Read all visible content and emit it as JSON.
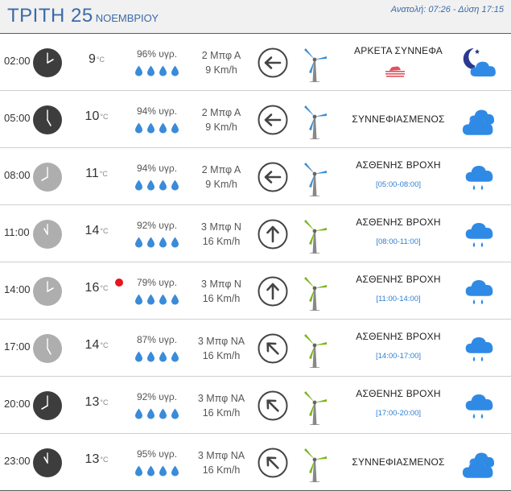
{
  "header": {
    "day": "ΤΡΙΤΗ 25",
    "month": "ΝΟΕΜΒΡΙΟΥ",
    "sun_times": "Ανατολή: 07:26 - Δύση 17:15"
  },
  "temp_unit": "°C",
  "rows": [
    {
      "time": "02:00",
      "clock": "dark",
      "hour": 2,
      "minute": 0,
      "temp": "9",
      "humidity": "96% υγρ.",
      "wind_bft": "2 Μπφ Α",
      "wind_speed": "9 Km/h",
      "wind_dir": "east",
      "wind_bearing": 270,
      "turbine": "blue",
      "condition": "ΑΡΚΕΤΑ ΣΥΝΝΕΦΑ",
      "range": "",
      "icon": "night-cloud-icon",
      "haze": true,
      "hot": false
    },
    {
      "time": "05:00",
      "clock": "dark",
      "hour": 5,
      "minute": 0,
      "temp": "10",
      "humidity": "94% υγρ.",
      "wind_bft": "2 Μπφ Α",
      "wind_speed": "9 Km/h",
      "wind_dir": "east",
      "wind_bearing": 270,
      "turbine": "blue",
      "condition": "ΣΥΝΝΕΦΙΑΣΜΕΝΟΣ",
      "range": "",
      "icon": "overcast-icon",
      "haze": false,
      "hot": false
    },
    {
      "time": "08:00",
      "clock": "light",
      "hour": 8,
      "minute": 0,
      "temp": "11",
      "humidity": "94% υγρ.",
      "wind_bft": "2 Μπφ Α",
      "wind_speed": "9 Km/h",
      "wind_dir": "east",
      "wind_bearing": 270,
      "turbine": "blue",
      "condition": "ΑΣΘΕΝΗΣ ΒΡΟΧΗ",
      "range": "[05:00-08:00]",
      "icon": "rain-cloud-icon",
      "haze": false,
      "hot": false
    },
    {
      "time": "11:00",
      "clock": "light",
      "hour": 11,
      "minute": 0,
      "temp": "14",
      "humidity": "92% υγρ.",
      "wind_bft": "3 Μπφ Ν",
      "wind_speed": "16 Km/h",
      "wind_dir": "south",
      "wind_bearing": 0,
      "turbine": "green",
      "condition": "ΑΣΘΕΝΗΣ ΒΡΟΧΗ",
      "range": "[08:00-11:00]",
      "icon": "rain-cloud-icon",
      "haze": false,
      "hot": false
    },
    {
      "time": "14:00",
      "clock": "light",
      "hour": 14,
      "minute": 0,
      "temp": "16",
      "humidity": "79% υγρ.",
      "wind_bft": "3 Μπφ Ν",
      "wind_speed": "16 Km/h",
      "wind_dir": "south",
      "wind_bearing": 0,
      "turbine": "green",
      "condition": "ΑΣΘΕΝΗΣ ΒΡΟΧΗ",
      "range": "[11:00-14:00]",
      "icon": "rain-cloud-icon",
      "haze": false,
      "hot": true
    },
    {
      "time": "17:00",
      "clock": "light",
      "hour": 17,
      "minute": 0,
      "temp": "14",
      "humidity": "87% υγρ.",
      "wind_bft": "3 Μπφ ΝΑ",
      "wind_speed": "16 Km/h",
      "wind_dir": "southeast",
      "wind_bearing": 315,
      "turbine": "green",
      "condition": "ΑΣΘΕΝΗΣ ΒΡΟΧΗ",
      "range": "[14:00-17:00]",
      "icon": "rain-cloud-icon",
      "haze": false,
      "hot": false
    },
    {
      "time": "20:00",
      "clock": "dark",
      "hour": 20,
      "minute": 0,
      "temp": "13",
      "humidity": "92% υγρ.",
      "wind_bft": "3 Μπφ ΝΑ",
      "wind_speed": "16 Km/h",
      "wind_dir": "southeast",
      "wind_bearing": 315,
      "turbine": "green",
      "condition": "ΑΣΘΕΝΗΣ ΒΡΟΧΗ",
      "range": "[17:00-20:00]",
      "icon": "rain-cloud-icon",
      "haze": false,
      "hot": false
    },
    {
      "time": "23:00",
      "clock": "dark",
      "hour": 23,
      "minute": 0,
      "temp": "13",
      "humidity": "95% υγρ.",
      "wind_bft": "3 Μπφ ΝΑ",
      "wind_speed": "16 Km/h",
      "wind_dir": "southeast",
      "wind_bearing": 315,
      "turbine": "green",
      "condition": "ΣΥΝΝΕΦΙΑΣΜΕΝΟΣ",
      "range": "",
      "icon": "overcast-icon",
      "haze": false,
      "hot": false
    }
  ],
  "colors": {
    "accent": "#3b6aa8",
    "clock_dark": "#3d3d3d",
    "clock_light": "#aeaeae",
    "drop": "#3a8bd8",
    "cloud": "#2f8ae6",
    "range_text": "#2f7fd0",
    "turbine_blue": "#3d8fd6",
    "turbine_green": "#7ab51d",
    "hot_dot": "#e8151b",
    "haze": "#e05160"
  }
}
